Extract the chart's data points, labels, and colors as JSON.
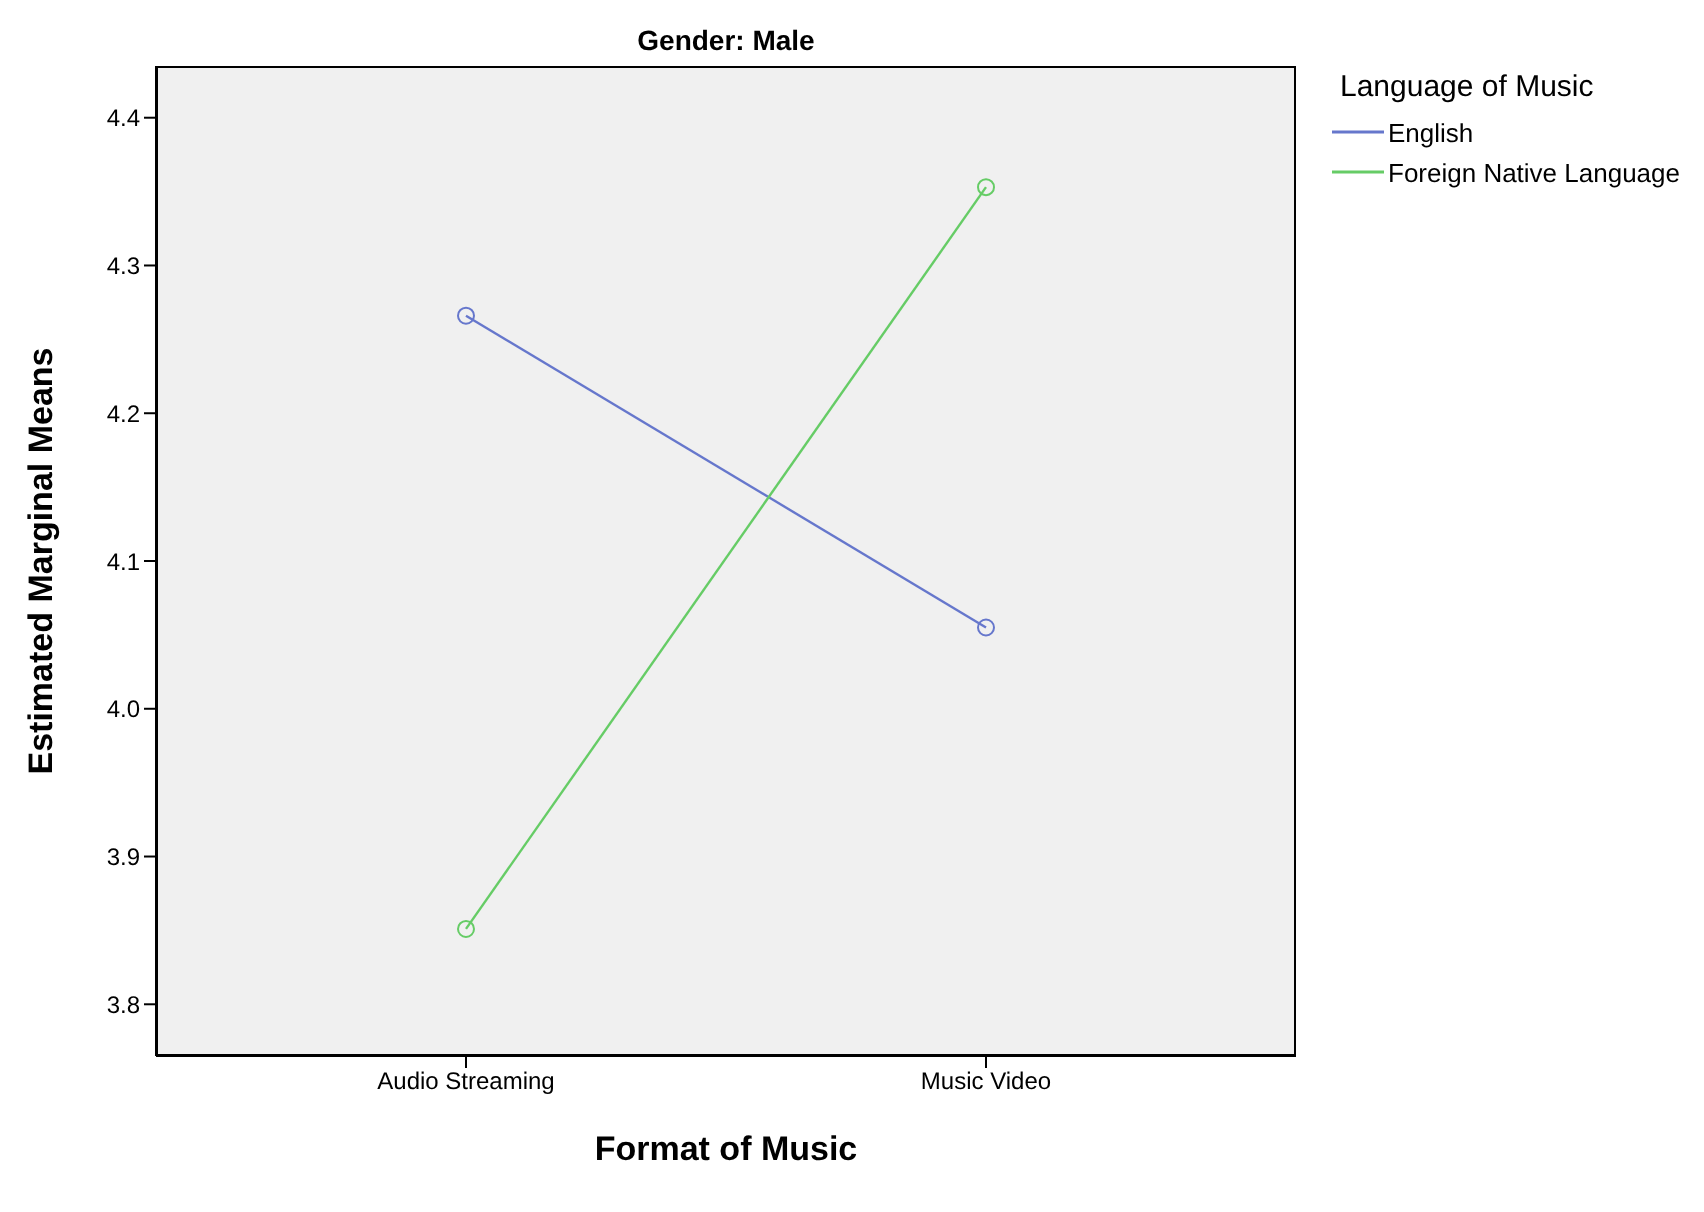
{
  "chart_data": {
    "type": "line",
    "title": "Gender: Male",
    "xlabel": "Format of Music",
    "ylabel": "Estimated Marginal Means",
    "legend_title": "Language of Music",
    "categories": [
      "Audio Streaming",
      "Music Video"
    ],
    "series": [
      {
        "name": "English",
        "color": "#6677cc",
        "values": [
          4.266,
          4.055
        ]
      },
      {
        "name": "Foreign Native Language",
        "color": "#66cc66",
        "values": [
          3.851,
          4.353
        ]
      }
    ],
    "ylim": [
      3.765,
      4.435
    ],
    "yticks": [
      {
        "value": 3.8,
        "label": "3.8"
      },
      {
        "value": 3.9,
        "label": "3.9"
      },
      {
        "value": 4.0,
        "label": "4.0"
      },
      {
        "value": 4.1,
        "label": "4.1"
      },
      {
        "value": 4.2,
        "label": "4.2"
      },
      {
        "value": 4.3,
        "label": "4.3"
      },
      {
        "value": 4.4,
        "label": "4.4"
      }
    ],
    "grid": false,
    "legend": "top right",
    "marker": "circle",
    "line_style": "solid"
  }
}
